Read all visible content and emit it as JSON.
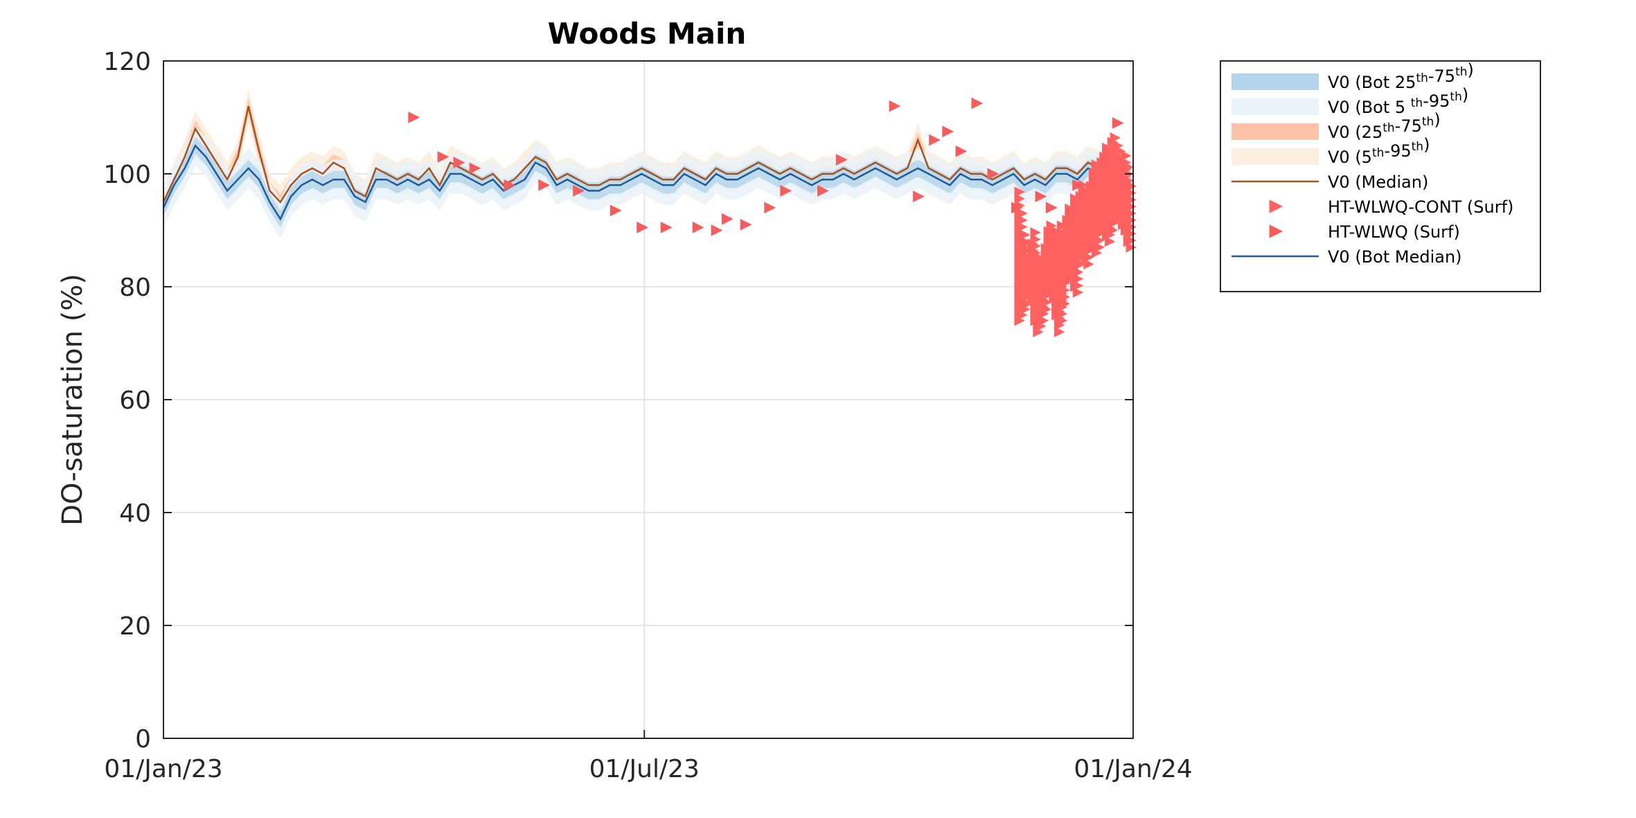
{
  "chart_data": {
    "type": "line",
    "title": "Woods Main",
    "xlabel": "",
    "ylabel": "DO-saturation (%)",
    "xlim": [
      "2023-01-01",
      "2024-01-01"
    ],
    "ylim": [
      0,
      120
    ],
    "yticks": [
      0,
      20,
      40,
      60,
      80,
      100,
      120
    ],
    "xticks": [
      {
        "date": "2023-01-01",
        "label": "01/Jan/23"
      },
      {
        "date": "2023-07-01",
        "label": "01/Jul/23"
      },
      {
        "date": "2024-01-01",
        "label": "01/Jan/24"
      }
    ],
    "grid": true,
    "legend_position": "outside-right",
    "legend": [
      {
        "pre": "V0 (Bot 25",
        "sup1": "th",
        "mid": "-75",
        "sup2": "th",
        "post": ")",
        "swatch": "band",
        "color": "#b3d4ea"
      },
      {
        "pre": "V0 (Bot 5 ",
        "sup1": "th",
        "mid": "-95",
        "sup2": "th",
        "post": ")",
        "swatch": "band",
        "color": "#eaf3fa"
      },
      {
        "pre": "V0 (25",
        "sup1": "th",
        "mid": "-75",
        "sup2": "th",
        "post": ")",
        "swatch": "band",
        "color": "#fdc3a8"
      },
      {
        "pre": "V0 (5",
        "sup1": "th",
        "mid": "-95",
        "sup2": "th",
        "post": ")",
        "swatch": "band",
        "color": "#fdefe0"
      },
      {
        "pre": "V0 (Median)",
        "sup1": "",
        "mid": "",
        "sup2": "",
        "post": "",
        "swatch": "line",
        "color": "#a6521e"
      },
      {
        "pre": "HT-WLWQ-CONT (Surf)",
        "sup1": "",
        "mid": "",
        "sup2": "",
        "post": "",
        "swatch": "marker",
        "color": "#ff6060"
      },
      {
        "pre": "HT-WLWQ (Surf)",
        "sup1": "",
        "mid": "",
        "sup2": "",
        "post": "",
        "swatch": "marker",
        "color": "#f55a5a"
      },
      {
        "pre": "V0 (Bot Median)",
        "sup1": "",
        "mid": "",
        "sup2": "",
        "post": "",
        "swatch": "line",
        "color": "#1f5a96"
      }
    ],
    "colors": {
      "surface_median": "#a6521e",
      "bottom_median": "#1f5a96",
      "bot_25_75": "#b3d4ea",
      "bot_5_95": "#eaf3fa",
      "surf_25_75": "#fdc3a8",
      "surf_5_95": "#fdefe0",
      "markers": "#ff6060"
    },
    "series": [
      {
        "name": "V0 (Median)",
        "x": [
          "2023-01-01",
          "2023-01-05",
          "2023-01-09",
          "2023-01-13",
          "2023-01-17",
          "2023-01-21",
          "2023-01-25",
          "2023-01-29",
          "2023-02-02",
          "2023-02-06",
          "2023-02-10",
          "2023-02-14",
          "2023-02-18",
          "2023-02-22",
          "2023-02-26",
          "2023-03-02",
          "2023-03-06",
          "2023-03-10",
          "2023-03-14",
          "2023-03-18",
          "2023-03-22",
          "2023-03-26",
          "2023-03-30",
          "2023-04-03",
          "2023-04-07",
          "2023-04-11",
          "2023-04-15",
          "2023-04-19",
          "2023-04-23",
          "2023-04-27",
          "2023-05-01",
          "2023-05-05",
          "2023-05-09",
          "2023-05-13",
          "2023-05-17",
          "2023-05-21",
          "2023-05-25",
          "2023-05-29",
          "2023-06-02",
          "2023-06-06",
          "2023-06-10",
          "2023-06-14",
          "2023-06-18",
          "2023-06-22",
          "2023-06-26",
          "2023-06-30",
          "2023-07-04",
          "2023-07-08",
          "2023-07-12",
          "2023-07-16",
          "2023-07-20",
          "2023-07-24",
          "2023-07-28",
          "2023-08-01",
          "2023-08-05",
          "2023-08-09",
          "2023-08-13",
          "2023-08-17",
          "2023-08-21",
          "2023-08-25",
          "2023-08-29",
          "2023-09-02",
          "2023-09-06",
          "2023-09-10",
          "2023-09-14",
          "2023-09-18",
          "2023-09-22",
          "2023-09-26",
          "2023-09-30",
          "2023-10-04",
          "2023-10-08",
          "2023-10-12",
          "2023-10-16",
          "2023-10-20",
          "2023-10-24",
          "2023-10-28",
          "2023-11-01",
          "2023-11-05",
          "2023-11-09",
          "2023-11-13",
          "2023-11-17",
          "2023-11-21",
          "2023-11-25",
          "2023-11-29",
          "2023-12-03",
          "2023-12-07",
          "2023-12-11",
          "2023-12-15",
          "2023-12-19",
          "2023-12-23",
          "2023-12-27",
          "2023-12-31"
        ],
        "y": [
          95,
          99,
          103,
          108,
          105,
          102,
          99,
          103,
          112,
          104,
          97,
          95,
          98,
          100,
          101,
          100,
          102,
          101,
          97,
          96,
          101,
          100,
          99,
          100,
          99,
          101,
          98,
          102,
          101,
          100,
          99,
          100,
          98,
          99,
          101,
          103,
          102,
          99,
          100,
          99,
          98,
          98,
          99,
          99,
          100,
          101,
          100,
          99,
          99,
          101,
          100,
          99,
          101,
          100,
          100,
          101,
          102,
          101,
          100,
          101,
          100,
          99,
          100,
          100,
          101,
          100,
          101,
          102,
          101,
          100,
          101,
          106,
          101,
          100,
          99,
          101,
          100,
          100,
          99,
          100,
          101,
          99,
          100,
          99,
          101,
          101,
          100,
          102,
          101,
          100,
          101,
          101
        ]
      },
      {
        "name": "V0 (Bot Median)",
        "x": [
          "2023-01-01",
          "2023-01-05",
          "2023-01-09",
          "2023-01-13",
          "2023-01-17",
          "2023-01-21",
          "2023-01-25",
          "2023-01-29",
          "2023-02-02",
          "2023-02-06",
          "2023-02-10",
          "2023-02-14",
          "2023-02-18",
          "2023-02-22",
          "2023-02-26",
          "2023-03-02",
          "2023-03-06",
          "2023-03-10",
          "2023-03-14",
          "2023-03-18",
          "2023-03-22",
          "2023-03-26",
          "2023-03-30",
          "2023-04-03",
          "2023-04-07",
          "2023-04-11",
          "2023-04-15",
          "2023-04-19",
          "2023-04-23",
          "2023-04-27",
          "2023-05-01",
          "2023-05-05",
          "2023-05-09",
          "2023-05-13",
          "2023-05-17",
          "2023-05-21",
          "2023-05-25",
          "2023-05-29",
          "2023-06-02",
          "2023-06-06",
          "2023-06-10",
          "2023-06-14",
          "2023-06-18",
          "2023-06-22",
          "2023-06-26",
          "2023-06-30",
          "2023-07-04",
          "2023-07-08",
          "2023-07-12",
          "2023-07-16",
          "2023-07-20",
          "2023-07-24",
          "2023-07-28",
          "2023-08-01",
          "2023-08-05",
          "2023-08-09",
          "2023-08-13",
          "2023-08-17",
          "2023-08-21",
          "2023-08-25",
          "2023-08-29",
          "2023-09-02",
          "2023-09-06",
          "2023-09-10",
          "2023-09-14",
          "2023-09-18",
          "2023-09-22",
          "2023-09-26",
          "2023-09-30",
          "2023-10-04",
          "2023-10-08",
          "2023-10-12",
          "2023-10-16",
          "2023-10-20",
          "2023-10-24",
          "2023-10-28",
          "2023-11-01",
          "2023-11-05",
          "2023-11-09",
          "2023-11-13",
          "2023-11-17",
          "2023-11-21",
          "2023-11-25",
          "2023-11-29",
          "2023-12-03",
          "2023-12-07",
          "2023-12-11",
          "2023-12-15",
          "2023-12-19",
          "2023-12-23",
          "2023-12-27",
          "2023-12-31"
        ],
        "y": [
          94,
          98,
          101,
          105,
          103,
          100,
          97,
          99,
          101,
          99,
          95,
          92,
          96,
          98,
          99,
          98,
          99,
          99,
          96,
          95,
          99,
          99,
          98,
          99,
          98,
          99,
          97,
          100,
          100,
          99,
          98,
          99,
          97,
          98,
          99,
          102,
          101,
          98,
          99,
          98,
          97,
          97,
          98,
          98,
          99,
          100,
          99,
          98,
          98,
          100,
          99,
          98,
          100,
          99,
          99,
          100,
          101,
          100,
          99,
          100,
          99,
          98,
          99,
          99,
          100,
          99,
          100,
          101,
          100,
          99,
          100,
          101,
          100,
          99,
          98,
          100,
          99,
          99,
          98,
          99,
          100,
          98,
          99,
          98,
          100,
          100,
          99,
          101,
          100,
          99,
          100,
          100
        ]
      },
      {
        "name": "HT-WLWQ (Surf)",
        "marker": "triangle-right",
        "x": [
          "2023-04-05",
          "2023-04-16",
          "2023-04-22",
          "2023-04-28",
          "2023-05-11",
          "2023-05-24",
          "2023-06-06",
          "2023-06-20",
          "2023-06-30",
          "2023-07-09",
          "2023-07-21",
          "2023-07-28",
          "2023-08-01",
          "2023-08-08",
          "2023-08-17",
          "2023-08-23",
          "2023-09-06",
          "2023-09-13",
          "2023-10-03",
          "2023-10-12",
          "2023-10-18",
          "2023-10-23",
          "2023-10-28",
          "2023-11-03",
          "2023-11-09",
          "2023-11-18",
          "2023-11-27",
          "2023-12-01",
          "2023-12-11",
          "2023-12-26"
        ],
        "y": [
          110,
          103,
          102,
          101,
          98,
          98,
          97,
          93.5,
          90.5,
          90.5,
          90.5,
          90,
          92,
          91,
          94,
          97,
          97,
          102.5,
          112,
          96,
          106,
          107.5,
          104,
          112.5,
          100,
          94,
          96,
          94,
          98,
          109
        ]
      },
      {
        "name": "HT-WLWQ-CONT (Surf)",
        "marker": "triangle-right",
        "x": [
          "2023-11-19",
          "2023-11-20",
          "2023-11-21",
          "2023-11-22",
          "2023-11-23",
          "2023-11-24",
          "2023-11-25",
          "2023-11-26",
          "2023-11-27",
          "2023-11-28",
          "2023-11-29",
          "2023-11-30",
          "2023-12-01",
          "2023-12-02",
          "2023-12-03",
          "2023-12-04",
          "2023-12-05",
          "2023-12-06",
          "2023-12-07",
          "2023-12-08",
          "2023-12-09",
          "2023-12-10",
          "2023-12-11",
          "2023-12-12",
          "2023-12-13",
          "2023-12-14",
          "2023-12-15",
          "2023-12-16",
          "2023-12-17",
          "2023-12-18",
          "2023-12-19",
          "2023-12-20",
          "2023-12-21",
          "2023-12-22",
          "2023-12-23",
          "2023-12-24",
          "2023-12-25",
          "2023-12-26",
          "2023-12-27",
          "2023-12-28",
          "2023-12-29",
          "2023-12-30",
          "2023-12-31"
        ],
        "ymin": [
          74,
          75,
          76,
          77,
          79,
          78,
          74,
          72,
          73,
          74,
          76,
          79,
          80,
          78,
          75,
          72,
          74,
          77,
          81,
          83,
          82,
          80,
          79,
          84,
          86,
          85,
          84,
          87,
          88,
          86,
          87,
          90,
          91,
          89,
          88,
          90,
          92,
          93,
          92,
          91,
          90,
          88,
          87
        ],
        "ymax": [
          97,
          94,
          90,
          88,
          86,
          88,
          90,
          86,
          84,
          86,
          88,
          90,
          92,
          91,
          88,
          90,
          92,
          90,
          93,
          95,
          94,
          96,
          95,
          97,
          99,
          98,
          97,
          99,
          101,
          102,
          101,
          103,
          104,
          105,
          104,
          106,
          107,
          106,
          105,
          103,
          104,
          102,
          98
        ]
      }
    ],
    "bands": {
      "note_units": "DO-saturation (%)",
      "bot_25_75_halfwidth": 1.5,
      "bot_5_95_halfwidth": 3.5,
      "surf_25_75_halfwidth": 1.5,
      "surf_5_95_halfwidth": 3
    }
  }
}
